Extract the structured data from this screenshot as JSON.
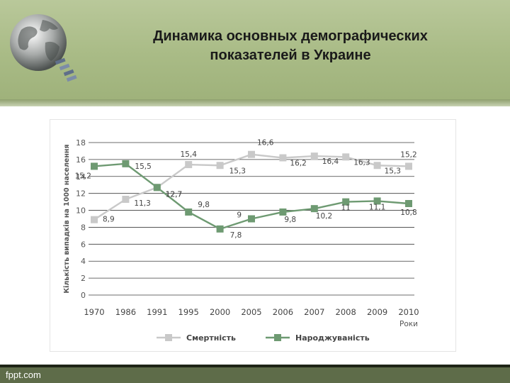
{
  "slide": {
    "title_line1": "Динамика основных демографических",
    "title_line2": "показателей в Украине",
    "footer": "fppt.com"
  },
  "colors": {
    "mortality": "#c9c9c9",
    "fertility": "#6e9a72",
    "header": "#a9bb86",
    "footer": "#5e6c49"
  },
  "chart_data": {
    "type": "line",
    "ylabel": "Кількість випадків на 1000 населення",
    "xlabel": "Роки",
    "categories": [
      "1970",
      "1986",
      "1991",
      "1995",
      "2000",
      "2005",
      "2006",
      "2007",
      "2008",
      "2009",
      "2010"
    ],
    "ylim": [
      0,
      18
    ],
    "yticks": [
      0,
      2,
      4,
      6,
      8,
      10,
      12,
      14,
      16,
      18
    ],
    "grid": true,
    "legend_position": "bottom",
    "series": [
      {
        "name": "Смертність",
        "values": [
          8.9,
          11.3,
          12.7,
          15.4,
          15.3,
          16.6,
          16.2,
          16.4,
          16.3,
          15.3,
          15.2
        ],
        "labels": [
          "8,9",
          "11,3",
          "12,7",
          "15,4",
          "15,3",
          "16,6",
          "16,2",
          "16,4",
          "16,3",
          "15,3",
          "15,2"
        ]
      },
      {
        "name": "Народжуваність",
        "values": [
          15.2,
          15.5,
          12.7,
          9.8,
          7.8,
          9.0,
          9.8,
          10.2,
          11.0,
          11.1,
          10.8
        ],
        "labels": [
          "15,2",
          "15,5",
          "12,7",
          "9,8",
          "7,8",
          "9",
          "9,8",
          "10,2",
          "11",
          "11,1",
          "10,8"
        ]
      }
    ]
  }
}
